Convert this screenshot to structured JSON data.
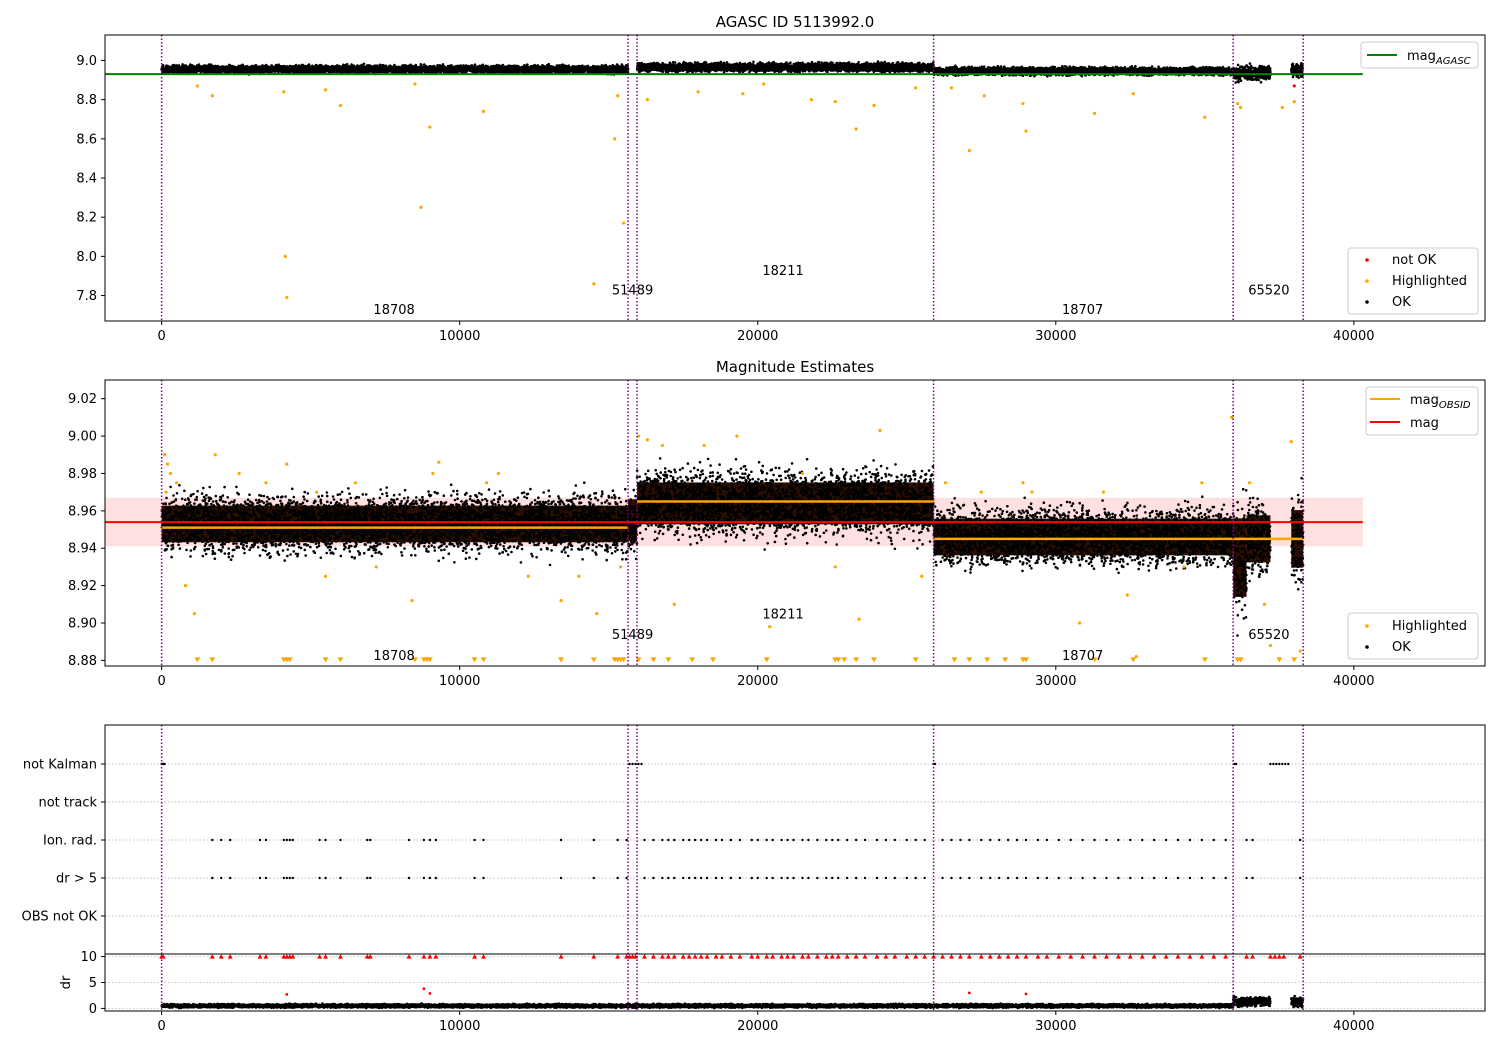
{
  "chart_data": [
    {
      "type": "scatter",
      "title": "AGASC ID 5113992.0",
      "xlim": [
        -1900,
        44400
      ],
      "ylim": [
        7.67,
        9.13
      ],
      "xticks": [
        0,
        10000,
        20000,
        30000,
        40000
      ],
      "xtick_labels": [
        "0",
        "10000",
        "20000",
        "30000",
        "40000"
      ],
      "yticks": [
        7.8,
        8.0,
        8.2,
        8.4,
        8.6,
        8.8,
        9.0
      ],
      "ytick_labels": [
        "7.8",
        "8.0",
        "8.2",
        "8.4",
        "8.6",
        "8.8",
        "9.0"
      ],
      "obsid_boundaries": [
        0,
        15650,
        15950,
        25900,
        35950,
        38300
      ],
      "obsid_labels": [
        {
          "text": "18708",
          "x": 7800,
          "y": 7.73
        },
        {
          "text": "51489",
          "x": 15800,
          "y": 7.83
        },
        {
          "text": "18211",
          "x": 20850,
          "y": 7.93
        },
        {
          "text": "18707",
          "x": 30900,
          "y": 7.73
        },
        {
          "text": "65520",
          "x": 37150,
          "y": 7.83
        }
      ],
      "mag_agasc": 8.93,
      "ok_band": [
        {
          "x": [
            0,
            15650
          ],
          "center": 8.955,
          "spread": 0.018
        },
        {
          "x": [
            15950,
            25900
          ],
          "center": 8.965,
          "spread": 0.02
        },
        {
          "x": [
            25900,
            35950
          ],
          "center": 8.945,
          "spread": 0.018
        },
        {
          "x": [
            35950,
            37200
          ],
          "center": 8.935,
          "spread": 0.035
        },
        {
          "x": [
            37900,
            38300
          ],
          "center": 8.95,
          "spread": 0.03
        }
      ],
      "highlighted_points": [
        [
          1200,
          8.87
        ],
        [
          1700,
          8.82
        ],
        [
          4100,
          8.84
        ],
        [
          4150,
          8.0
        ],
        [
          4200,
          7.79
        ],
        [
          5500,
          8.85
        ],
        [
          6000,
          8.77
        ],
        [
          8500,
          8.88
        ],
        [
          8700,
          8.25
        ],
        [
          9000,
          8.66
        ],
        [
          10800,
          8.74
        ],
        [
          14500,
          7.86
        ],
        [
          15200,
          8.6
        ],
        [
          15300,
          8.82
        ],
        [
          15500,
          8.17
        ],
        [
          16300,
          8.8
        ],
        [
          18000,
          8.84
        ],
        [
          19500,
          8.83
        ],
        [
          20200,
          8.88
        ],
        [
          21800,
          8.8
        ],
        [
          22600,
          8.79
        ],
        [
          23300,
          8.65
        ],
        [
          23900,
          8.77
        ],
        [
          25300,
          8.86
        ],
        [
          26500,
          8.86
        ],
        [
          27100,
          8.54
        ],
        [
          27600,
          8.82
        ],
        [
          28900,
          8.78
        ],
        [
          29000,
          8.64
        ],
        [
          31300,
          8.73
        ],
        [
          32600,
          8.83
        ],
        [
          35000,
          8.71
        ],
        [
          36100,
          8.78
        ],
        [
          36200,
          8.76
        ],
        [
          37600,
          8.76
        ],
        [
          38000,
          8.79
        ]
      ],
      "not_ok_points": [
        [
          38000,
          8.87
        ]
      ],
      "legend_lines": [
        {
          "name": "mag",
          "subscript": "AGASC",
          "color": "#008000"
        }
      ],
      "legend_markers": [
        {
          "name": "not OK",
          "color": "#ff0000"
        },
        {
          "name": "Highlighted",
          "color": "#ffa500"
        },
        {
          "name": "OK",
          "color": "#000000"
        }
      ]
    },
    {
      "type": "scatter",
      "title": "Magnitude Estimates",
      "xlim": [
        -1900,
        44400
      ],
      "ylim": [
        8.877,
        9.03
      ],
      "xticks": [
        0,
        10000,
        20000,
        30000,
        40000
      ],
      "xtick_labels": [
        "0",
        "10000",
        "20000",
        "30000",
        "40000"
      ],
      "yticks": [
        8.88,
        8.9,
        8.92,
        8.94,
        8.96,
        8.98,
        9.0,
        9.02
      ],
      "ytick_labels": [
        "8.88",
        "8.90",
        "8.92",
        "8.94",
        "8.96",
        "8.98",
        "9.00",
        "9.02"
      ],
      "obsid_boundaries": [
        0,
        15650,
        15950,
        25900,
        35950,
        38300
      ],
      "obsid_labels": [
        {
          "text": "18708",
          "x": 7800,
          "y": 8.883
        },
        {
          "text": "51489",
          "x": 15800,
          "y": 8.894
        },
        {
          "text": "18211",
          "x": 20850,
          "y": 8.905
        },
        {
          "text": "18707",
          "x": 30900,
          "y": 8.883
        },
        {
          "text": "65520",
          "x": 37150,
          "y": 8.894
        }
      ],
      "mag": 8.954,
      "mag_band": [
        8.941,
        8.967
      ],
      "mag_obsid": [
        {
          "x": [
            0,
            15650
          ],
          "value": 8.951
        },
        {
          "x": [
            15950,
            25900
          ],
          "value": 8.965
        },
        {
          "x": [
            25900,
            35950
          ],
          "value": 8.945
        },
        {
          "x": [
            35950,
            38300
          ],
          "value": 8.945
        }
      ],
      "ok_band": [
        {
          "x": [
            0,
            15650
          ],
          "center": 8.953,
          "spread": 0.014
        },
        {
          "x": [
            15650,
            15950
          ],
          "center": 8.955,
          "spread": 0.016
        },
        {
          "x": [
            15950,
            25900
          ],
          "center": 8.964,
          "spread": 0.016
        },
        {
          "x": [
            25900,
            35950
          ],
          "center": 8.946,
          "spread": 0.014
        },
        {
          "x": [
            35950,
            36400
          ],
          "center": 8.935,
          "spread": 0.03
        },
        {
          "x": [
            36400,
            37200
          ],
          "center": 8.945,
          "spread": 0.018
        },
        {
          "x": [
            37900,
            38300
          ],
          "center": 8.945,
          "spread": 0.022
        }
      ],
      "highlighted_points": [
        [
          100,
          8.99
        ],
        [
          200,
          8.985
        ],
        [
          300,
          8.98
        ],
        [
          500,
          8.975
        ],
        [
          150,
          8.97
        ],
        [
          800,
          8.92
        ],
        [
          1100,
          8.905
        ],
        [
          1800,
          8.99
        ],
        [
          2600,
          8.98
        ],
        [
          3500,
          8.975
        ],
        [
          4200,
          8.985
        ],
        [
          5200,
          8.97
        ],
        [
          5500,
          8.925
        ],
        [
          6500,
          8.975
        ],
        [
          7200,
          8.93
        ],
        [
          8400,
          8.912
        ],
        [
          9100,
          8.98
        ],
        [
          9300,
          8.986
        ],
        [
          10900,
          8.975
        ],
        [
          11300,
          8.98
        ],
        [
          12300,
          8.925
        ],
        [
          13400,
          8.912
        ],
        [
          14000,
          8.925
        ],
        [
          14600,
          8.905
        ],
        [
          15400,
          8.93
        ],
        [
          16000,
          9.0
        ],
        [
          16300,
          8.998
        ],
        [
          16800,
          8.995
        ],
        [
          17200,
          8.91
        ],
        [
          18200,
          8.995
        ],
        [
          19300,
          9.0
        ],
        [
          20400,
          8.898
        ],
        [
          21500,
          8.98
        ],
        [
          22600,
          8.93
        ],
        [
          23400,
          8.902
        ],
        [
          24100,
          9.003
        ],
        [
          25500,
          8.925
        ],
        [
          26300,
          8.975
        ],
        [
          27500,
          8.97
        ],
        [
          28900,
          8.975
        ],
        [
          29200,
          8.97
        ],
        [
          30800,
          8.9
        ],
        [
          31600,
          8.97
        ],
        [
          32400,
          8.915
        ],
        [
          32700,
          8.882
        ],
        [
          34300,
          8.93
        ],
        [
          34900,
          8.975
        ],
        [
          35900,
          9.01
        ],
        [
          36500,
          8.975
        ],
        [
          37000,
          8.91
        ],
        [
          37200,
          8.888
        ],
        [
          37900,
          8.997
        ],
        [
          38200,
          8.885
        ]
      ],
      "clipped_points_x": [
        1200,
        1700,
        4100,
        4200,
        4300,
        5500,
        6000,
        8500,
        8800,
        8900,
        9000,
        10500,
        10800,
        13400,
        14500,
        15200,
        15300,
        15400,
        15500,
        16000,
        16500,
        17000,
        17800,
        18500,
        20300,
        22600,
        22700,
        22900,
        23300,
        23900,
        25300,
        26600,
        27100,
        27700,
        28300,
        28900,
        29000,
        31300,
        32600,
        35000,
        36100,
        36200,
        37500,
        38000
      ],
      "legend_lines": [
        {
          "name": "mag",
          "subscript": "OBSID",
          "color": "#ffa500"
        },
        {
          "name": "mag",
          "subscript": "",
          "color": "#ff0000"
        }
      ],
      "legend_markers": [
        {
          "name": "Highlighted",
          "color": "#ffa500"
        },
        {
          "name": "OK",
          "color": "#000000"
        }
      ]
    },
    {
      "type": "scatter",
      "xlim": [
        -1900,
        44400
      ],
      "xticks": [
        0,
        10000,
        20000,
        30000,
        40000
      ],
      "xtick_labels": [
        "0",
        "10000",
        "20000",
        "30000",
        "40000"
      ],
      "obsid_boundaries": [
        0,
        15650,
        15950,
        25900,
        35950,
        38300
      ],
      "flag_rows": [
        "not Kalman",
        "not track",
        "Ion. rad.",
        "dr > 5",
        "OBS not OK"
      ],
      "flag_points": {
        "not Kalman": [
          0,
          50,
          100,
          15700,
          15800,
          15900,
          16000,
          16100,
          25900,
          25950,
          36000,
          36050,
          37200,
          37300,
          37400,
          37500,
          37600,
          37700,
          37800
        ],
        "not track": [],
        "Ion. rad.": [
          1700,
          2000,
          2300,
          3300,
          3500,
          4100,
          4200,
          4300,
          4400,
          5300,
          5500,
          6000,
          6900,
          7000,
          8300,
          8800,
          9000,
          9200,
          10500,
          10800,
          13400,
          14500,
          15300,
          15600,
          16200,
          16500,
          16800,
          17000,
          17200,
          17500,
          17700,
          17900,
          18100,
          18300,
          18600,
          18800,
          19100,
          19400,
          19800,
          20000,
          20300,
          20500,
          20800,
          21000,
          21200,
          21500,
          21700,
          22000,
          22300,
          22500,
          22700,
          23000,
          23300,
          23600,
          24000,
          24300,
          24600,
          25000,
          25300,
          25600,
          26200,
          26500,
          26800,
          27100,
          27500,
          27800,
          28100,
          28400,
          28700,
          29000,
          29400,
          29700,
          30100,
          30500,
          30900,
          31300,
          31700,
          32100,
          32500,
          32900,
          33300,
          33700,
          34100,
          34500,
          34900,
          35300,
          35700,
          36400,
          36600,
          38200
        ],
        "dr > 5": [
          1700,
          2000,
          2300,
          3300,
          3500,
          4100,
          4200,
          4300,
          4400,
          5300,
          5500,
          6000,
          6900,
          7000,
          8300,
          8800,
          9000,
          9200,
          10500,
          10800,
          13400,
          14500,
          15300,
          15600,
          16200,
          16500,
          16800,
          17000,
          17200,
          17500,
          17700,
          17900,
          18100,
          18300,
          18600,
          18800,
          19100,
          19400,
          19800,
          20000,
          20300,
          20500,
          20800,
          21000,
          21200,
          21500,
          21700,
          22000,
          22300,
          22500,
          22700,
          23000,
          23300,
          23600,
          24000,
          24300,
          24600,
          25000,
          25300,
          25600,
          26200,
          26500,
          26800,
          27100,
          27500,
          27800,
          28100,
          28400,
          28700,
          29000,
          29400,
          29700,
          30100,
          30500,
          30900,
          31300,
          31700,
          32100,
          32500,
          32900,
          33300,
          33700,
          34100,
          34500,
          34900,
          35300,
          35700,
          36400,
          36600,
          38200
        ],
        "OBS not OK": []
      },
      "dr_ylabel": "dr",
      "dr_ylim": [
        -0.5,
        10.5
      ],
      "dr_yticks": [
        0,
        5,
        10
      ],
      "dr_ytick_labels": [
        "0",
        "5",
        "10"
      ],
      "dr_clip_value": 10,
      "dr_highlight_points": [
        [
          8800,
          3.8
        ],
        [
          9000,
          2.9
        ],
        [
          4200,
          2.7
        ],
        [
          27100,
          3.0
        ],
        [
          29000,
          2.8
        ]
      ],
      "dr_ok_band": [
        {
          "x": [
            0,
            35950
          ],
          "center": 0.5,
          "spread": 0.3
        },
        {
          "x": [
            35950,
            37200
          ],
          "center": 1.3,
          "spread": 0.8
        },
        {
          "x": [
            37900,
            38300
          ],
          "center": 1.3,
          "spread": 0.8
        }
      ]
    }
  ]
}
